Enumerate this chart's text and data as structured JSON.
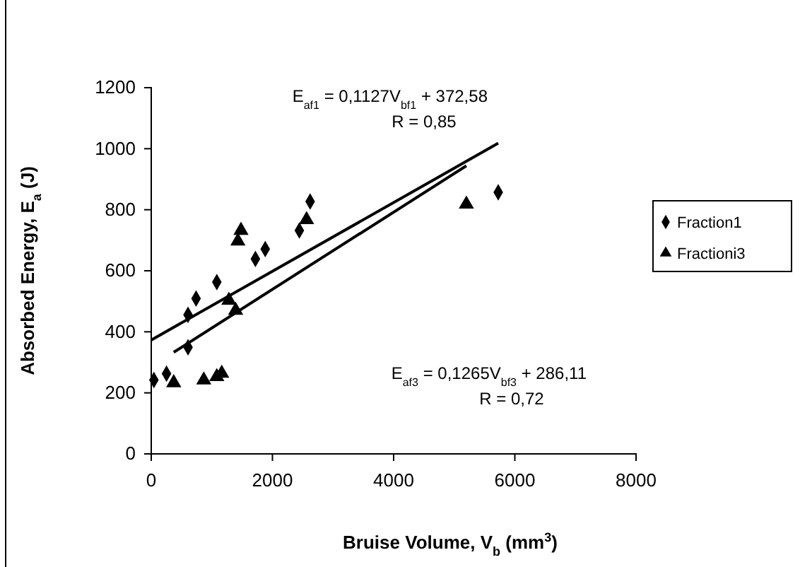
{
  "chart_data": {
    "type": "scatter",
    "xlabel": "Bruise Volume, V$_{b}$ (mm$^{3}$)",
    "ylabel": "Absorbed Energy, E$_{a}$ (J)",
    "xlim": [
      0,
      8000
    ],
    "xticks": [
      0,
      2000,
      4000,
      6000,
      8000
    ],
    "ylim": [
      0,
      1200
    ],
    "yticks": [
      0,
      200,
      400,
      600,
      800,
      1000,
      1200
    ],
    "grid": false,
    "legend": "right",
    "series": [
      {
        "name": "Fraction1",
        "color": "#000000",
        "marker": "diamond",
        "x": [
          44,
          252,
          607,
          607,
          740,
          1082,
          1719,
          1881,
          2444,
          2622,
          5726
        ],
        "values": [
          242,
          263,
          349,
          456,
          509,
          563,
          639,
          671,
          732,
          827,
          857
        ]
      },
      {
        "name": "Fractioni3",
        "color": "#000000",
        "marker": "triangle",
        "x": [
          371,
          867,
          1082,
          1163,
          1281,
          1393,
          1430,
          1481,
          2563,
          5200
        ],
        "values": [
          233,
          242,
          253,
          264,
          503,
          470,
          697,
          732,
          767,
          818
        ]
      },
      {
        "type": "line",
        "color": "#000000",
        "marker": "none",
        "line_style": "solid",
        "x": [
          0,
          5726
        ],
        "values": [
          373,
          1018
        ]
      },
      {
        "type": "line",
        "color": "#000000",
        "marker": "none",
        "line_style": "solid",
        "x": [
          371,
          5200
        ],
        "values": [
          333,
          944
        ]
      }
    ],
    "annotations": [
      "E$_{af1}$ = 0,1127V$_{bf1}$ + 372,58",
      "R = 0,85",
      "E$_{af3}$ = 0,1265V$_{bf3}$ + 286,11",
      "R = 0,72"
    ]
  }
}
